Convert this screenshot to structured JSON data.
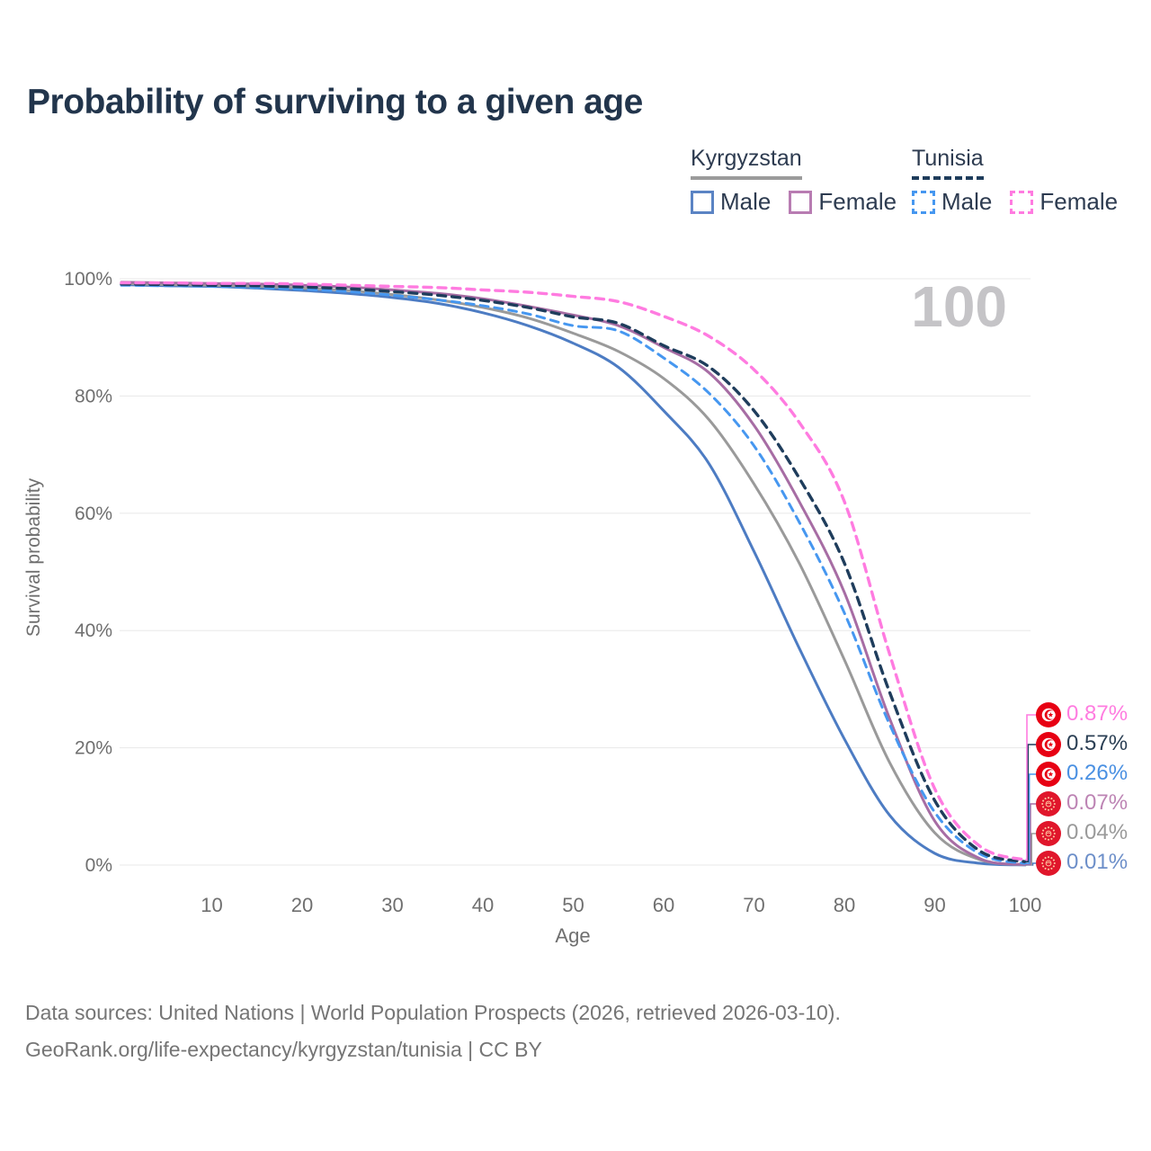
{
  "page": {
    "title": "Probability of surviving to a given age",
    "watermark": "100",
    "footer_line1": "Data sources: United Nations | World Population Prospects (2026, retrieved 2026-03-10).",
    "footer_line2": "GeoRank.org/life-expectancy/kyrgyzstan/tunisia | CC BY"
  },
  "legend": {
    "groups": [
      {
        "country": "Kyrgyzstan",
        "line_style": "solid",
        "underline_color": "#9b9b9b",
        "items": [
          {
            "label": "Male",
            "color": "#5b84c4"
          },
          {
            "label": "Female",
            "color": "#b87cb2"
          }
        ]
      },
      {
        "country": "Tunisia",
        "line_style": "dashed",
        "underline_color": "#1f3d5c",
        "items": [
          {
            "label": "Male",
            "color": "#4697f0"
          },
          {
            "label": "Female",
            "color": "#ff7be0"
          }
        ]
      }
    ]
  },
  "chart_data": {
    "type": "line",
    "title": "Probability of surviving to a given age",
    "xlabel": "Age",
    "ylabel": "Survival probability",
    "xlim": [
      0,
      100
    ],
    "ylim": [
      0,
      100
    ],
    "grid": "horizontal",
    "legend_position": "top-right",
    "x_tick_values": [
      10,
      20,
      30,
      40,
      50,
      60,
      70,
      80,
      90,
      100
    ],
    "x_tick_labels": [
      "10",
      "20",
      "30",
      "40",
      "50",
      "60",
      "70",
      "80",
      "90",
      "100"
    ],
    "y_tick_values": [
      0,
      20,
      40,
      60,
      80,
      100
    ],
    "y_tick_labels": [
      "0%",
      "20%",
      "40%",
      "60%",
      "80%",
      "100%"
    ],
    "x": [
      0,
      5,
      10,
      15,
      20,
      25,
      30,
      35,
      40,
      45,
      50,
      55,
      60,
      65,
      70,
      75,
      80,
      85,
      90,
      95,
      100
    ],
    "series": [
      {
        "id": "kyrgyzstan-male",
        "country": "Kyrgyzstan",
        "sex": "Male",
        "color": "#4d7cc3",
        "dash": "solid",
        "width": 3,
        "values": [
          99.0,
          98.8,
          98.7,
          98.4,
          98.0,
          97.5,
          96.8,
          95.8,
          94.2,
          92.0,
          89.0,
          84.9,
          77.5,
          68.5,
          53.5,
          37.0,
          21.5,
          8.5,
          2.0,
          0.3,
          0.01
        ],
        "end_label": "0.01%",
        "end_label_color": "#6d8fc9",
        "flag": "kyrgyzstan",
        "row": 5
      },
      {
        "id": "kyrgyzstan-both",
        "country": "Kyrgyzstan",
        "sex": "Both sexes",
        "color": "#9a9a9a",
        "dash": "solid",
        "width": 3,
        "values": [
          99.2,
          99.0,
          98.9,
          98.7,
          98.4,
          98.0,
          97.3,
          96.4,
          95.1,
          93.3,
          90.7,
          87.6,
          83.0,
          76.0,
          65.0,
          51.5,
          35.0,
          17.5,
          5.5,
          0.9,
          0.04
        ],
        "end_label": "0.04%",
        "end_label_color": "#9a9a9a",
        "flag": "kyrgyzstan",
        "row": 4
      },
      {
        "id": "kyrgyzstan-female",
        "country": "Kyrgyzstan",
        "sex": "Female",
        "color": "#a76da4",
        "dash": "solid",
        "width": 3,
        "values": [
          99.4,
          99.3,
          99.2,
          99.1,
          98.9,
          98.6,
          98.1,
          97.5,
          96.6,
          95.3,
          93.8,
          92.0,
          88.3,
          84.0,
          75.0,
          62.0,
          46.5,
          25.0,
          7.5,
          1.1,
          0.07
        ],
        "end_label": "0.07%",
        "end_label_color": "#bd84b4",
        "flag": "kyrgyzstan",
        "row": 3
      },
      {
        "id": "tunisia-male",
        "country": "Tunisia",
        "sex": "Male",
        "color": "#4697f0",
        "dash": "dashed",
        "width": 3,
        "values": [
          98.9,
          98.8,
          98.7,
          98.5,
          98.2,
          97.8,
          97.2,
          96.4,
          95.4,
          94.0,
          92.0,
          91.1,
          86.5,
          80.5,
          71.5,
          58.5,
          43.0,
          24.0,
          9.0,
          1.9,
          0.26
        ],
        "end_label": "0.26%",
        "end_label_color": "#4a90e2",
        "flag": "tunisia",
        "row": 2
      },
      {
        "id": "tunisia-both",
        "country": "Tunisia",
        "sex": "Both sexes",
        "color": "#1f3d5c",
        "dash": "dashed",
        "width": 3.4,
        "values": [
          99.1,
          99.0,
          98.9,
          98.8,
          98.6,
          98.3,
          97.8,
          97.2,
          96.3,
          95.1,
          93.5,
          92.4,
          88.6,
          85.0,
          77.5,
          66.0,
          51.5,
          29.5,
          11.0,
          2.4,
          0.57
        ],
        "end_label": "0.57%",
        "end_label_color": "#2b3f54",
        "flag": "tunisia",
        "row": 1
      },
      {
        "id": "tunisia-female",
        "country": "Tunisia",
        "sex": "Female",
        "color": "#ff7be0",
        "dash": "dashed",
        "width": 3.4,
        "values": [
          99.3,
          99.3,
          99.2,
          99.2,
          99.1,
          98.9,
          98.7,
          98.5,
          98.1,
          97.7,
          97.0,
          96.1,
          93.6,
          90.2,
          84.5,
          75.5,
          62.0,
          36.0,
          13.0,
          3.2,
          0.87
        ],
        "end_label": "0.87%",
        "end_label_color": "#ff7ce0",
        "flag": "tunisia",
        "row": 0
      }
    ]
  }
}
